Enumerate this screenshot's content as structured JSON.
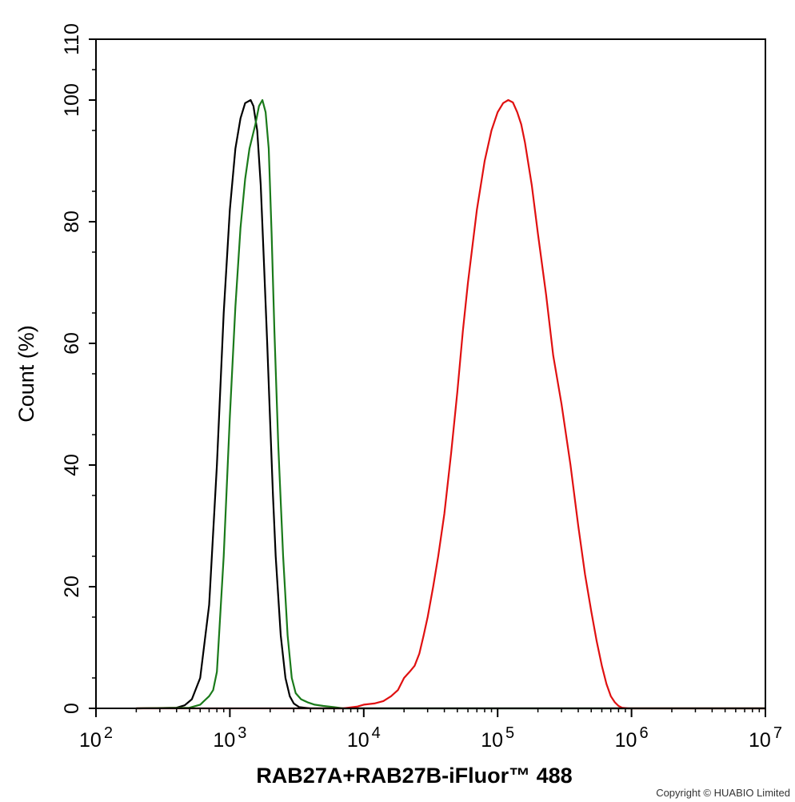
{
  "chart_data": {
    "type": "line",
    "xlabel": "RAB27A+RAB27B-iFluor™ 488",
    "ylabel": "Count  (%)",
    "x_scale": "log",
    "xlim": [
      100,
      10000000
    ],
    "ylim": [
      0,
      110
    ],
    "x_ticks": [
      {
        "value": 100,
        "base": "10",
        "exp": "2"
      },
      {
        "value": 1000,
        "base": "10",
        "exp": "3"
      },
      {
        "value": 10000,
        "base": "10",
        "exp": "4"
      },
      {
        "value": 100000,
        "base": "10",
        "exp": "5"
      },
      {
        "value": 1000000,
        "base": "10",
        "exp": "6"
      },
      {
        "value": 10000000,
        "base": "10",
        "exp": "7"
      }
    ],
    "y_ticks": [
      0,
      20,
      40,
      60,
      80,
      100,
      110
    ],
    "grid": false,
    "legend": "none",
    "series": [
      {
        "color": "#000000",
        "points": [
          [
            200,
            0
          ],
          [
            400,
            0.1
          ],
          [
            460,
            0.5
          ],
          [
            520,
            1.5
          ],
          [
            600,
            5
          ],
          [
            700,
            17
          ],
          [
            800,
            40
          ],
          [
            900,
            65
          ],
          [
            1000,
            82
          ],
          [
            1100,
            92
          ],
          [
            1200,
            97
          ],
          [
            1300,
            99.5
          ],
          [
            1430,
            100
          ],
          [
            1500,
            99
          ],
          [
            1600,
            95
          ],
          [
            1700,
            86
          ],
          [
            1800,
            73
          ],
          [
            1900,
            60
          ],
          [
            2000,
            47
          ],
          [
            2100,
            35
          ],
          [
            2200,
            25
          ],
          [
            2400,
            12
          ],
          [
            2600,
            5
          ],
          [
            2800,
            2
          ],
          [
            3000,
            0.8
          ],
          [
            3300,
            0.2
          ],
          [
            4000,
            0
          ],
          [
            10000000,
            0
          ]
        ]
      },
      {
        "color": "#1a7a1a",
        "points": [
          [
            200,
            0
          ],
          [
            500,
            0.1
          ],
          [
            600,
            0.6
          ],
          [
            700,
            2
          ],
          [
            750,
            3
          ],
          [
            800,
            6
          ],
          [
            900,
            25
          ],
          [
            1000,
            48
          ],
          [
            1100,
            66
          ],
          [
            1200,
            79
          ],
          [
            1300,
            87
          ],
          [
            1400,
            92
          ],
          [
            1550,
            96
          ],
          [
            1650,
            99
          ],
          [
            1750,
            100
          ],
          [
            1850,
            98
          ],
          [
            1950,
            92
          ],
          [
            2050,
            78
          ],
          [
            2150,
            62
          ],
          [
            2300,
            43
          ],
          [
            2500,
            25
          ],
          [
            2700,
            12
          ],
          [
            2900,
            5
          ],
          [
            3100,
            2.5
          ],
          [
            3400,
            1.5
          ],
          [
            3800,
            1
          ],
          [
            4300,
            0.6
          ],
          [
            5000,
            0.4
          ],
          [
            6000,
            0.2
          ],
          [
            7000,
            0
          ],
          [
            10000000,
            0
          ]
        ]
      },
      {
        "color": "#e01010",
        "points": [
          [
            200,
            0
          ],
          [
            7000,
            0
          ],
          [
            9000,
            0.3
          ],
          [
            10000,
            0.6
          ],
          [
            12000,
            0.8
          ],
          [
            14000,
            1.2
          ],
          [
            16000,
            2
          ],
          [
            18000,
            3
          ],
          [
            20000,
            5
          ],
          [
            22000,
            6
          ],
          [
            24000,
            7
          ],
          [
            26000,
            9
          ],
          [
            28000,
            12
          ],
          [
            30000,
            15
          ],
          [
            33000,
            20
          ],
          [
            36000,
            25
          ],
          [
            40000,
            32
          ],
          [
            45000,
            42
          ],
          [
            50000,
            52
          ],
          [
            55000,
            62
          ],
          [
            60000,
            70
          ],
          [
            70000,
            82
          ],
          [
            80000,
            90
          ],
          [
            90000,
            95
          ],
          [
            100000,
            98
          ],
          [
            110000,
            99.5
          ],
          [
            120000,
            100
          ],
          [
            130000,
            99.6
          ],
          [
            140000,
            98
          ],
          [
            150000,
            96
          ],
          [
            160000,
            93
          ],
          [
            180000,
            86
          ],
          [
            200000,
            78
          ],
          [
            230000,
            68
          ],
          [
            260000,
            58
          ],
          [
            300000,
            50
          ],
          [
            350000,
            40
          ],
          [
            400000,
            30
          ],
          [
            450000,
            22
          ],
          [
            500000,
            16
          ],
          [
            550000,
            11
          ],
          [
            600000,
            7
          ],
          [
            650000,
            4
          ],
          [
            700000,
            2
          ],
          [
            750000,
            1
          ],
          [
            800000,
            0.4
          ],
          [
            850000,
            0.1
          ],
          [
            950000,
            0
          ],
          [
            10000000,
            0
          ]
        ]
      }
    ]
  },
  "copyright": "Copyright © HUABIO Limited"
}
